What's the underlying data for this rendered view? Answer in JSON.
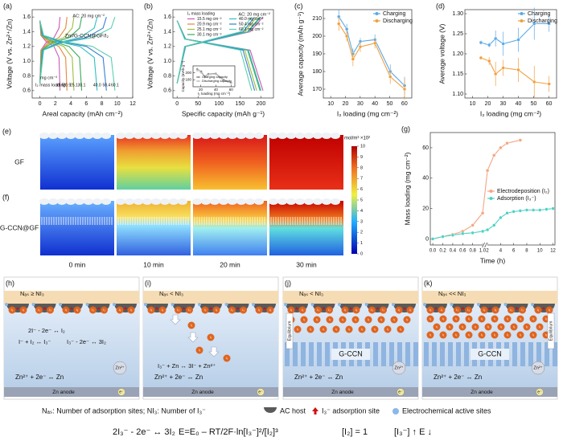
{
  "chart_data": [
    {
      "type": "line",
      "panel": "(a)",
      "x_label": "Areal capacity (mAh cm⁻²)",
      "y_label": "Voltage (V vs. Zn²⁺/Zn)",
      "xlim": [
        -1,
        12
      ],
      "xticks": [
        0,
        2,
        4,
        6,
        8,
        10,
        12
      ],
      "ylim": [
        0.5,
        1.7
      ],
      "yticks": [
        0.6,
        0.8,
        {
          "value": 1.0,
          "label": "1.0"
        },
        1.2,
        1.4,
        1.6
      ],
      "annotations": [
        "AC: 20 mg cm⁻²",
        "Zn//G-CCN@GF/I₂",
        "mg cm⁻²",
        "I₂ mass loading:"
      ],
      "series_labels": true,
      "series": [
        {
          "name": "15.5",
          "color": "#c85ab4",
          "x": [
            0,
            0.13,
            0.78,
            1.82,
            2.47,
            2.6
          ],
          "charge": [
            0.7,
            1.15,
            1.25,
            1.32,
            1.45,
            1.6
          ],
          "discharge": [
            1.55,
            1.35,
            1.27,
            1.2,
            1.05,
            0.6
          ]
        },
        {
          "name": "20.9",
          "color": "#e8863a",
          "x": [
            0,
            0.18,
            1.05,
            2.45,
            3.33,
            3.5
          ],
          "charge": [
            0.7,
            1.15,
            1.25,
            1.32,
            1.45,
            1.6
          ],
          "discharge": [
            1.55,
            1.35,
            1.27,
            1.2,
            1.05,
            0.6
          ]
        },
        {
          "name": "25.1",
          "color": "#9bbf3a",
          "x": [
            0,
            0.22,
            1.32,
            3.08,
            4.18,
            4.4
          ],
          "charge": [
            0.7,
            1.15,
            1.25,
            1.32,
            1.45,
            1.6
          ],
          "discharge": [
            1.55,
            1.35,
            1.27,
            1.2,
            1.05,
            0.6
          ]
        },
        {
          "name": "30.1",
          "color": "#3aaa5a",
          "x": [
            0,
            0.27,
            1.62,
            3.78,
            5.13,
            5.4
          ],
          "charge": [
            0.7,
            1.15,
            1.25,
            1.32,
            1.45,
            1.6
          ],
          "discharge": [
            1.55,
            1.35,
            1.27,
            1.2,
            1.05,
            0.6
          ]
        },
        {
          "name": "40.0",
          "color": "#2fc0c0",
          "x": [
            0,
            0.37,
            2.22,
            5.18,
            7.03,
            7.4
          ],
          "charge": [
            0.7,
            1.15,
            1.25,
            1.32,
            1.45,
            1.6
          ],
          "discharge": [
            1.55,
            1.35,
            1.27,
            1.2,
            1.05,
            0.6
          ]
        },
        {
          "name": "50.4",
          "color": "#3a7fd0",
          "x": [
            0,
            0.43,
            2.58,
            6.02,
            8.17,
            8.6
          ],
          "charge": [
            0.7,
            1.15,
            1.25,
            1.32,
            1.45,
            1.6
          ],
          "discharge": [
            1.55,
            1.35,
            1.27,
            1.2,
            1.05,
            0.6
          ]
        },
        {
          "name": "60.1",
          "color": "#5ad0b0",
          "x": [
            0,
            0.49,
            2.91,
            6.79,
            9.22,
            9.7
          ],
          "charge": [
            0.7,
            1.15,
            1.25,
            1.32,
            1.45,
            1.6
          ],
          "discharge": [
            1.55,
            1.35,
            1.27,
            1.2,
            1.05,
            0.6
          ]
        }
      ]
    },
    {
      "type": "line",
      "panel": "(b)",
      "x_label": "Specific capacity (mAh g⁻¹)",
      "y_label": "Voltage (V vs. Zn²⁺/Zn)",
      "xlim": [
        -10,
        230
      ],
      "xticks": [
        0,
        50,
        100,
        150,
        200
      ],
      "ylim": [
        0.5,
        1.7
      ],
      "yticks": [
        0.6,
        0.8,
        {
          "value": 1.0,
          "label": "1.0"
        },
        1.2,
        1.4,
        1.6
      ],
      "annotations": [
        "AC: 20 mg cm⁻²"
      ],
      "legend": "upper left",
      "legend_title": "I₂ mass loading",
      "series": [
        {
          "name": "15.5 mg cm⁻²",
          "color": "#c85ab4",
          "x": [
            0,
            20.5,
            174.3,
            205
          ],
          "charge": [
            0.7,
            1.2,
            1.4,
            1.6
          ],
          "discharge": [
            1.55,
            1.3,
            1.15,
            0.6
          ]
        },
        {
          "name": "20.9 mg cm⁻²",
          "color": "#e8863a",
          "x": [
            0,
            20,
            170,
            200
          ],
          "charge": [
            0.7,
            1.2,
            1.4,
            1.6
          ],
          "discharge": [
            1.55,
            1.3,
            1.15,
            0.6
          ]
        },
        {
          "name": "25.1 mg cm⁻²",
          "color": "#9bbf3a",
          "x": [
            0,
            19,
            161.5,
            190
          ],
          "charge": [
            0.7,
            1.2,
            1.4,
            1.6
          ],
          "discharge": [
            1.55,
            1.3,
            1.15,
            0.6
          ]
        },
        {
          "name": "30.1 mg cm⁻²",
          "color": "#3aaa5a",
          "x": [
            0,
            19.8,
            168.3,
            198
          ],
          "charge": [
            0.7,
            1.2,
            1.4,
            1.6
          ],
          "discharge": [
            1.55,
            1.3,
            1.15,
            0.6
          ]
        },
        {
          "name": "40.0 mg cm⁻²",
          "color": "#2fc0c0",
          "x": [
            0,
            20,
            170,
            200
          ],
          "charge": [
            0.7,
            1.2,
            1.4,
            1.6
          ],
          "discharge": [
            1.55,
            1.3,
            1.15,
            0.6
          ]
        },
        {
          "name": "50.4 mg cm⁻²",
          "color": "#3a7fd0",
          "x": [
            0,
            18.5,
            157.3,
            185
          ],
          "charge": [
            0.7,
            1.2,
            1.4,
            1.6
          ],
          "discharge": [
            1.55,
            1.3,
            1.15,
            0.6
          ]
        },
        {
          "name": "60.1 mg cm⁻²",
          "color": "#5ad0b0",
          "x": [
            0,
            17.8,
            151.3,
            178
          ],
          "charge": [
            0.7,
            1.2,
            1.4,
            1.6
          ],
          "discharge": [
            1.55,
            1.3,
            1.15,
            0.6
          ]
        }
      ]
    },
    {
      "type": "line",
      "x_label": "I₂ loading (mg cm⁻²)",
      "y_label": "Capacity (mAh g⁻¹)",
      "markers": true,
      "xlim": [
        10,
        65
      ],
      "xticks": [
        20,
        40,
        60
      ],
      "ylim": [
        160,
        220
      ],
      "yticks": [
        180,
        200
      ],
      "legend": "lower left",
      "x": [
        15.5,
        20.9,
        25.1,
        30.1,
        40.0,
        50.4,
        60.1
      ],
      "series": [
        {
          "name": "Charging capacity",
          "color": "#888888",
          "values": [
            211,
            204,
            190,
            197,
            198,
            180,
            172
          ]
        },
        {
          "name": "Discharging capacity",
          "color": "#c0c0c0",
          "values": [
            207,
            200,
            187,
            194,
            196,
            177,
            170
          ]
        }
      ]
    },
    {
      "type": "line",
      "panel": "(c)",
      "x_label": "I₂ loading (mg cm⁻²)",
      "y_label": "Average capacity (mAh g⁻¹)",
      "markers": true,
      "xlim": [
        5,
        65
      ],
      "xticks": [
        10,
        20,
        30,
        40,
        50,
        60
      ],
      "ylim": [
        165,
        215
      ],
      "yticks": [
        170,
        180,
        190,
        200,
        210
      ],
      "legend": "upper right",
      "x": [
        15.5,
        20.9,
        25.1,
        30.1,
        40.0,
        50.4,
        60.1
      ],
      "series": [
        {
          "name": "Charging",
          "color": "#5aa9e6",
          "values": [
            211,
            204,
            190,
            197,
            198,
            180,
            172
          ],
          "errors": [
            4,
            3,
            3,
            2,
            3,
            4,
            5
          ]
        },
        {
          "name": "Discharging",
          "color": "#f0a040",
          "values": [
            207,
            200,
            187,
            194,
            196,
            177,
            170
          ],
          "errors": [
            4,
            3,
            4,
            3,
            3,
            4,
            6
          ]
        }
      ]
    },
    {
      "type": "line",
      "panel": "(d)",
      "x_label": "I₂ loading (mg cm⁻²)",
      "y_label": "Average voltage (V)",
      "markers": true,
      "xlim": [
        5,
        65
      ],
      "xticks": [
        10,
        20,
        30,
        40,
        50,
        60
      ],
      "ylim": [
        1.09,
        1.31
      ],
      "yticks": [
        {
          "value": 1.1,
          "label": "1.10"
        },
        1.15,
        {
          "value": 1.2,
          "label": "1.20"
        },
        1.25,
        {
          "value": 1.3,
          "label": "1.30"
        }
      ],
      "legend": "upper right",
      "x": [
        15.5,
        20.9,
        25.1,
        30.1,
        40.0,
        50.4,
        60.1
      ],
      "series": [
        {
          "name": "Charging",
          "color": "#5aa9e6",
          "values": [
            1.228,
            1.222,
            1.238,
            1.225,
            1.235,
            1.275,
            1.275
          ],
          "errors": [
            0.005,
            0.006,
            0.02,
            0.03,
            0.03,
            0.04,
            0.02
          ]
        },
        {
          "name": "Discharging",
          "color": "#f0a040",
          "values": [
            1.19,
            1.182,
            1.15,
            1.165,
            1.16,
            1.13,
            1.125
          ],
          "errors": [
            0.005,
            0.01,
            0.03,
            0.02,
            0.03,
            0.04,
            0.02
          ]
        }
      ]
    },
    {
      "type": "line",
      "panel": "(g)",
      "x_label": "Time (h)",
      "y_label": "Mass loading (mg cm⁻²)",
      "markers": true,
      "axis_break": [
        1,
        2
      ],
      "xlim": [
        -0.05,
        12.3
      ],
      "xticks": [
        {
          "value": 0,
          "label": "0.0"
        },
        0.2,
        0.4,
        0.6,
        0.8,
        {
          "value": 1,
          "label": "1.0"
        },
        2,
        4,
        6,
        8,
        10,
        12
      ],
      "ylim": [
        -4,
        70
      ],
      "yticks": [
        0,
        20,
        40,
        60
      ],
      "legend": "center right",
      "series": [
        {
          "name": "Electrodeposition (I₂)",
          "color": "#f4a582",
          "x": [
            0,
            0.2,
            0.4,
            0.6,
            0.8,
            1.0,
            2,
            3,
            4,
            5,
            7
          ],
          "values": [
            0,
            1.5,
            3,
            5,
            9,
            17,
            45,
            55,
            60,
            63,
            65
          ]
        },
        {
          "name": "Adsorption (I₃⁻)",
          "color": "#4fd1c5",
          "x": [
            0,
            0.2,
            0.4,
            0.6,
            0.8,
            1.0,
            2,
            3,
            4,
            5,
            6,
            7,
            8,
            9,
            10,
            11,
            12
          ],
          "values": [
            0,
            1.5,
            2.5,
            3.5,
            4,
            5,
            6,
            9,
            14,
            17,
            18,
            18.5,
            19,
            19,
            19,
            19.5,
            20
          ]
        }
      ]
    }
  ],
  "heatmaps": {
    "panels": [
      "(e)",
      "(f)"
    ],
    "rows": [
      "GF",
      "G-CCN@GF"
    ],
    "times": [
      "0 min",
      "10 min",
      "20 min",
      "30 min"
    ],
    "colorbar": {
      "label": "mol/m³ ×10²",
      "ticks": [
        0,
        1,
        2,
        3,
        4,
        5,
        6,
        7,
        8,
        9,
        10
      ]
    }
  },
  "schematic": {
    "ball_label": "I₃",
    "panels": [
      {
        "label": "(h)",
        "condition": "Nₐₛ ≥ NI₃",
        "equations": [
          "2I⁻ - 2e⁻ ↔ I₂",
          "I⁻ + I₂ ↔ I₃⁻",
          "I₃⁻ - 2e⁻ ↔ 3I₂"
        ],
        "reaction": "Zn²⁺ + 2e⁻ ↔ Zn",
        "anode": "Zn anode",
        "ion": "Zn²⁺",
        "electron": "e⁻"
      },
      {
        "label": "(i)",
        "condition": "Nₐₛ < NI₃",
        "equations": [
          "I₃⁻ + Zn ↔ 3I⁻ + Zn²⁺"
        ],
        "reaction": "Zn²⁺ + 2e⁻ ↔ Zn",
        "anode": "Zn anode",
        "electron": "e⁻"
      },
      {
        "label": "(j)",
        "condition": "Nₐₛ < NI₃",
        "equilibrium": "Equilibrium",
        "membrane": "G-CCN",
        "reaction": "Zn²⁺ + 2e⁻ ↔ Zn",
        "anode": "Zn anode",
        "ion": "Zn²⁺",
        "electron": "e⁻"
      },
      {
        "label": "(k)",
        "condition": "Nₐₛ << NI₃",
        "equilibrium": "Equilibrium",
        "membrane": "G-CCN",
        "reaction": "Zn²⁺ + 2e⁻ ↔ Zn",
        "anode": "Zn anode",
        "ion": "Zn²⁺",
        "electron": "e⁻"
      }
    ],
    "legend": [
      "Nₐₛ: Number of adsorption sites; NI₃: Number of I₃⁻",
      "AC host",
      "I₃⁻ adsorption site",
      "Electrochemical active sites"
    ],
    "formula": [
      "2I₃⁻ - 2e⁻ ↔ 3I₂",
      "E=E₀ – RT/2F·ln[I₃⁻]²/[I₂]³",
      "[I₂] = 1",
      "[I₃⁻] ↑ E ↓"
    ]
  }
}
